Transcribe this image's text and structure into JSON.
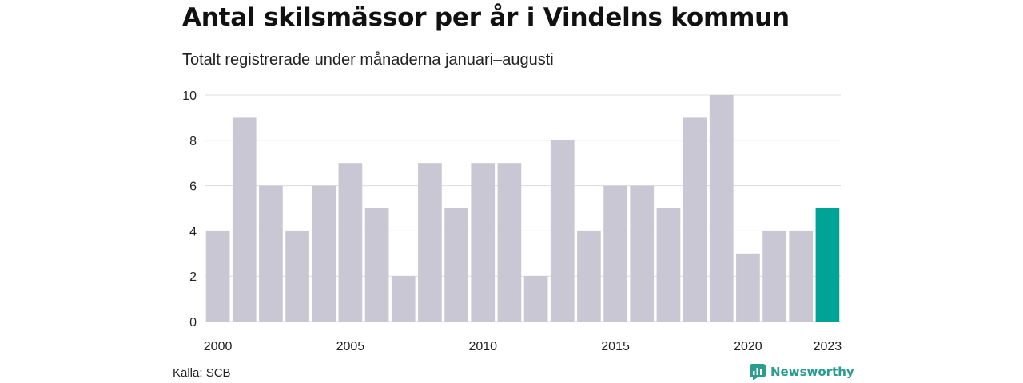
{
  "title": "Antal skilsmässor per år i Vindelns kommun",
  "subtitle": "Totalt registrerade under månaderna januari–augusti",
  "source": "Källa: SCB",
  "brand": "Newsworthy",
  "colors": {
    "bar": "#c8c7d3",
    "highlight": "#00a497",
    "grid": "#dcdcdc",
    "brand": "#2a9d8f"
  },
  "chart_data": {
    "type": "bar",
    "categories": [
      2000,
      2001,
      2002,
      2003,
      2004,
      2005,
      2006,
      2007,
      2008,
      2009,
      2010,
      2011,
      2012,
      2013,
      2014,
      2015,
      2016,
      2017,
      2018,
      2019,
      2020,
      2021,
      2022,
      2023
    ],
    "values": [
      4,
      9,
      6,
      4,
      6,
      7,
      5,
      2,
      7,
      5,
      7,
      7,
      2,
      8,
      4,
      6,
      6,
      5,
      9,
      10,
      3,
      4,
      4,
      5
    ],
    "highlight_category": 2023,
    "x_tick_labels": [
      "2000",
      "2005",
      "2010",
      "2015",
      "2020",
      "2023"
    ],
    "y_ticks": [
      0,
      2,
      4,
      6,
      8,
      10
    ],
    "ylim": [
      0,
      10
    ],
    "grid": true
  }
}
